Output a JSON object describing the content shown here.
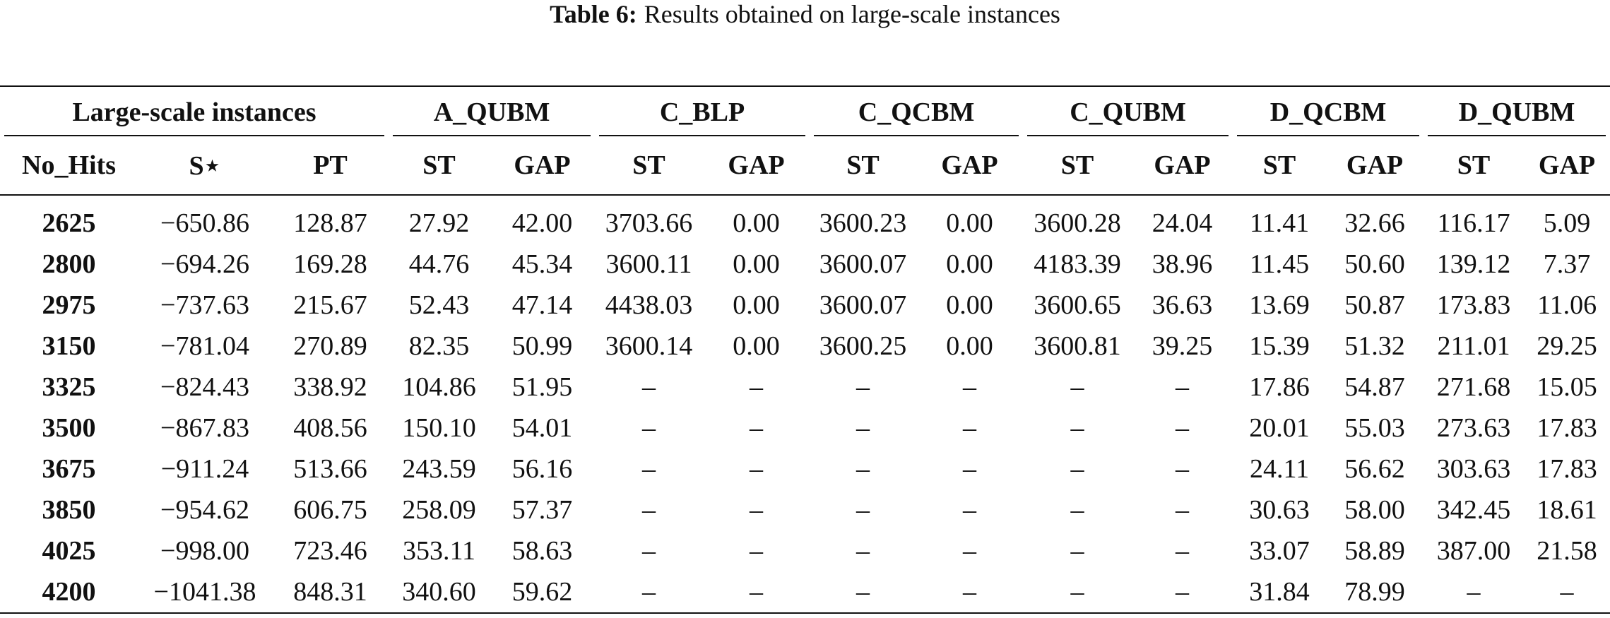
{
  "caption": {
    "label": "Table 6:",
    "text": "Results obtained on large-scale instances"
  },
  "table": {
    "groups": [
      "Large-scale instances",
      "A_QUBM",
      "C_BLP",
      "C_QCBM",
      "C_QUBM",
      "D_QCBM",
      "D_QUBM"
    ],
    "columns": [
      "No_Hits",
      "S⋆",
      "PT",
      "ST",
      "GAP",
      "ST",
      "GAP",
      "ST",
      "GAP",
      "ST",
      "GAP",
      "ST",
      "GAP",
      "ST",
      "GAP"
    ],
    "rows": [
      [
        "2625",
        "−650.86",
        "128.87",
        "27.92",
        "42.00",
        "3703.66",
        "0.00",
        "3600.23",
        "0.00",
        "3600.28",
        "24.04",
        "11.41",
        "32.66",
        "116.17",
        "5.09"
      ],
      [
        "2800",
        "−694.26",
        "169.28",
        "44.76",
        "45.34",
        "3600.11",
        "0.00",
        "3600.07",
        "0.00",
        "4183.39",
        "38.96",
        "11.45",
        "50.60",
        "139.12",
        "7.37"
      ],
      [
        "2975",
        "−737.63",
        "215.67",
        "52.43",
        "47.14",
        "4438.03",
        "0.00",
        "3600.07",
        "0.00",
        "3600.65",
        "36.63",
        "13.69",
        "50.87",
        "173.83",
        "11.06"
      ],
      [
        "3150",
        "−781.04",
        "270.89",
        "82.35",
        "50.99",
        "3600.14",
        "0.00",
        "3600.25",
        "0.00",
        "3600.81",
        "39.25",
        "15.39",
        "51.32",
        "211.01",
        "29.25"
      ],
      [
        "3325",
        "−824.43",
        "338.92",
        "104.86",
        "51.95",
        "–",
        "–",
        "–",
        "–",
        "–",
        "–",
        "17.86",
        "54.87",
        "271.68",
        "15.05"
      ],
      [
        "3500",
        "−867.83",
        "408.56",
        "150.10",
        "54.01",
        "–",
        "–",
        "–",
        "–",
        "–",
        "–",
        "20.01",
        "55.03",
        "273.63",
        "17.83"
      ],
      [
        "3675",
        "−911.24",
        "513.66",
        "243.59",
        "56.16",
        "–",
        "–",
        "–",
        "–",
        "–",
        "–",
        "24.11",
        "56.62",
        "303.63",
        "17.83"
      ],
      [
        "3850",
        "−954.62",
        "606.75",
        "258.09",
        "57.37",
        "–",
        "–",
        "–",
        "–",
        "–",
        "–",
        "30.63",
        "58.00",
        "342.45",
        "18.61"
      ],
      [
        "4025",
        "−998.00",
        "723.46",
        "353.11",
        "58.63",
        "–",
        "–",
        "–",
        "–",
        "–",
        "–",
        "33.07",
        "58.89",
        "387.00",
        "21.58"
      ],
      [
        "4200",
        "−1041.38",
        "848.31",
        "340.60",
        "59.62",
        "–",
        "–",
        "–",
        "–",
        "–",
        "–",
        "31.84",
        "78.99",
        "–",
        "–"
      ]
    ]
  }
}
